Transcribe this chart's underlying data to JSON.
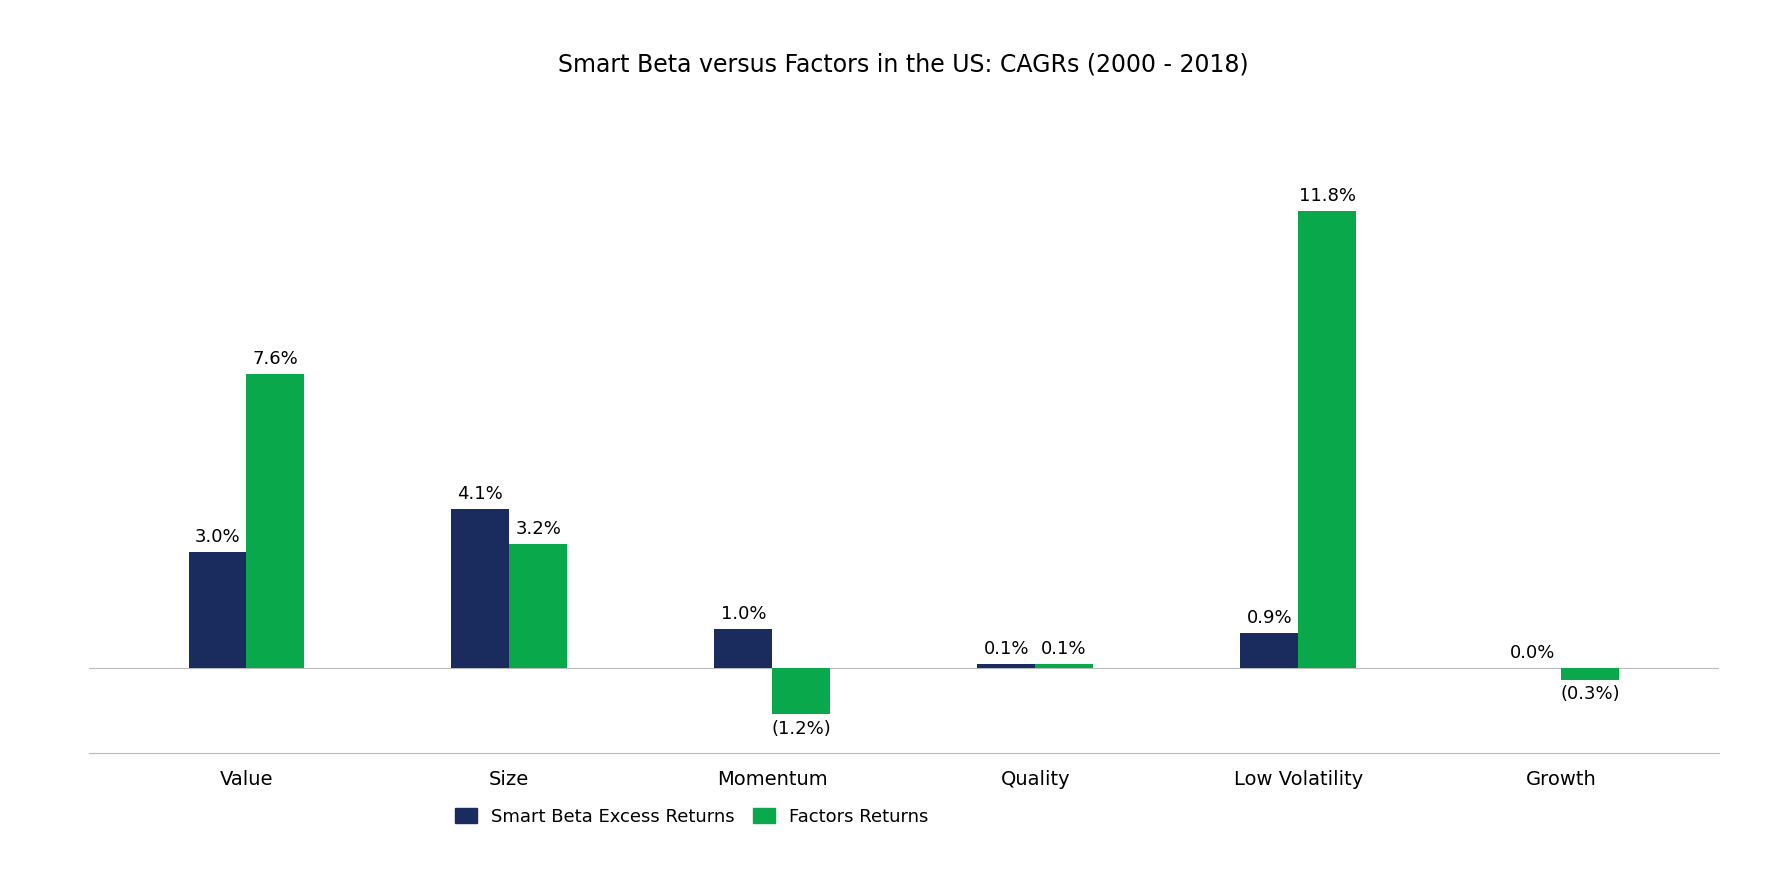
{
  "title": "Smart Beta versus Factors in the US: CAGRs (2000 - 2018)",
  "categories": [
    "Value",
    "Size",
    "Momentum",
    "Quality",
    "Low Volatility",
    "Growth"
  ],
  "smart_beta": [
    3.0,
    4.1,
    1.0,
    0.1,
    0.9,
    0.0
  ],
  "factors": [
    7.6,
    3.2,
    -1.2,
    0.1,
    11.8,
    -0.3
  ],
  "smart_beta_labels": [
    "3.0%",
    "4.1%",
    "1.0%",
    "0.1%",
    "0.9%",
    "0.0%"
  ],
  "factors_labels": [
    "7.6%",
    "3.2%",
    "(1.2%)",
    "0.1%",
    "11.8%",
    "(0.3%)"
  ],
  "smart_beta_color": "#1a2b5e",
  "factors_color": "#09a84a",
  "background_color": "#ffffff",
  "title_fontsize": 17,
  "label_fontsize": 13,
  "tick_fontsize": 14,
  "legend_fontsize": 13,
  "bar_width": 0.22,
  "ylim": [
    -2.2,
    14.5
  ],
  "legend_labels": [
    "Smart Beta Excess Returns",
    "Factors Returns"
  ]
}
